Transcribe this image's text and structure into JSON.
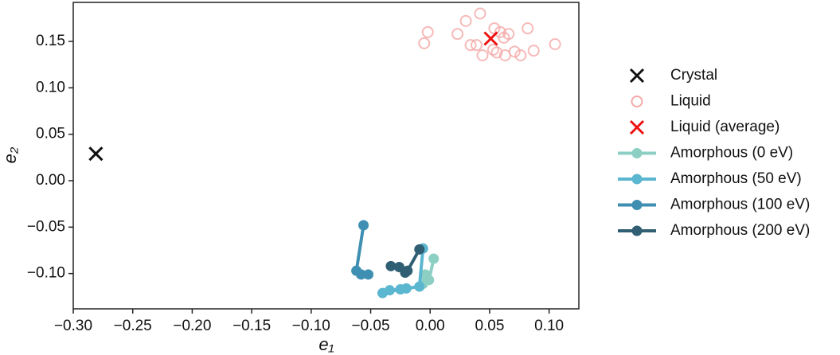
{
  "chart_data": {
    "type": "scatter",
    "xlabel": "e₁",
    "ylabel": "e₂",
    "xlim": [
      -0.3,
      0.125
    ],
    "ylim": [
      -0.138,
      0.192
    ],
    "xticks": [
      {
        "value": -0.3,
        "label": "−0.30"
      },
      {
        "value": -0.25,
        "label": "−0.25"
      },
      {
        "value": -0.2,
        "label": "−0.20"
      },
      {
        "value": -0.15,
        "label": "−0.15"
      },
      {
        "value": -0.1,
        "label": "−0.10"
      },
      {
        "value": -0.05,
        "label": "−0.05"
      },
      {
        "value": 0,
        "label": "0.00"
      },
      {
        "value": 0.05,
        "label": "0.05"
      },
      {
        "value": 0.1,
        "label": "0.10"
      }
    ],
    "yticks": [
      {
        "value": -0.1,
        "label": "−0.10"
      },
      {
        "value": -0.05,
        "label": "−0.05"
      },
      {
        "value": 0,
        "label": "0.00"
      },
      {
        "value": 0.05,
        "label": "0.05"
      },
      {
        "value": 0.1,
        "label": "0.10"
      },
      {
        "value": 0.15,
        "label": "0.15"
      }
    ],
    "series": [
      {
        "name": "Crystal",
        "color": "#111111",
        "marker": "x",
        "x": [
          -0.281
        ],
        "values": [
          0.029
        ]
      },
      {
        "name": "Liquid",
        "color": "#f4a9a8",
        "marker": "o",
        "x": [
          -0.005,
          -0.002,
          0.023,
          0.03,
          0.042,
          0.034,
          0.039,
          0.044,
          0.053,
          0.054,
          0.059,
          0.063,
          0.056,
          0.062,
          0.066,
          0.071,
          0.076,
          0.082,
          0.087,
          0.105
        ],
        "values": [
          0.148,
          0.16,
          0.158,
          0.172,
          0.18,
          0.146,
          0.146,
          0.135,
          0.141,
          0.164,
          0.16,
          0.135,
          0.138,
          0.154,
          0.158,
          0.139,
          0.135,
          0.164,
          0.14,
          0.147
        ]
      },
      {
        "name": "Liquid (average)",
        "color": "#ee1111",
        "marker": "x",
        "x": [
          0.051
        ],
        "values": [
          0.153
        ]
      },
      {
        "name": "Amorphous (0 eV)",
        "color": "#8ecfc4",
        "marker": "line",
        "x": [
          0.003,
          -0.001,
          -0.006,
          -0.004
        ],
        "values": [
          -0.084,
          -0.107,
          -0.111,
          -0.101
        ]
      },
      {
        "name": "Amorphous (50 eV)",
        "color": "#5bb6d0",
        "marker": "line",
        "x": [
          -0.006,
          -0.009,
          -0.025,
          -0.04,
          -0.034,
          -0.02
        ],
        "values": [
          -0.073,
          -0.114,
          -0.117,
          -0.121,
          -0.118,
          -0.116
        ]
      },
      {
        "name": "Amorphous (100 eV)",
        "color": "#3f8fb2",
        "marker": "line",
        "x": [
          -0.056,
          -0.062,
          -0.058,
          -0.052
        ],
        "values": [
          -0.048,
          -0.097,
          -0.101,
          -0.101
        ]
      },
      {
        "name": "Amorphous (200 eV)",
        "color": "#305f74",
        "marker": "line",
        "x": [
          -0.009,
          -0.019,
          -0.033,
          -0.026,
          -0.021
        ],
        "values": [
          -0.074,
          -0.097,
          -0.092,
          -0.093,
          -0.099
        ]
      }
    ]
  }
}
